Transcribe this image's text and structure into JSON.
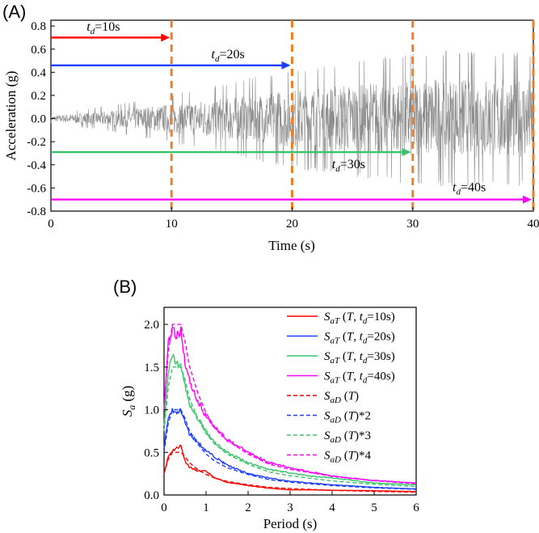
{
  "panel_a": {
    "label": "(A)",
    "xlabel": "Time (s)",
    "ylabel": "Acceleration (g)",
    "xticks": [
      "0",
      "10",
      "20",
      "30",
      "40"
    ],
    "yticks": [
      "-0.8",
      "-0.6",
      "-0.4",
      "-0.2",
      "0.0",
      "0.2",
      "0.4",
      "0.6",
      "0.8"
    ],
    "record_color": "#8c8c8c",
    "cutoff_color": "#f07f2a",
    "annotations": [
      {
        "sub": "d",
        "text": "=10s",
        "color": "#ff0000",
        "value": 10,
        "arrow_y": 0.7,
        "label_y": 0.76
      },
      {
        "sub": "d",
        "text": "=20s",
        "color": "#1f3fff",
        "value": 20,
        "arrow_y": 0.46,
        "label_y": 0.52
      },
      {
        "sub": "d",
        "text": "=30s",
        "color": "#3cc36a",
        "value": 30,
        "arrow_y": -0.29,
        "label_y": -0.43
      },
      {
        "sub": "d",
        "text": "=40s",
        "color": "#ff00ff",
        "value": 40,
        "arrow_y": -0.7,
        "label_y": -0.63
      }
    ]
  },
  "panel_b": {
    "label": "(B)",
    "xlabel": "Period (s)",
    "ylabel_main": "S",
    "ylabel_sub": "a",
    "ylabel_unit": " (g)",
    "xticks": [
      "0",
      "1",
      "2",
      "3",
      "4",
      "5",
      "6"
    ],
    "yticks": [
      "0.0",
      "0.5",
      "1.0",
      "1.5",
      "2.0"
    ],
    "legend": [
      {
        "sub": "aT",
        "pre": " (",
        "t": "T",
        "mid": ", t",
        "dsub": "d",
        "post": "=10s)",
        "color": "#ff0000",
        "dash": false
      },
      {
        "sub": "aT",
        "pre": " (",
        "t": "T",
        "mid": ", t",
        "dsub": "d",
        "post": "=20s)",
        "color": "#1f3fff",
        "dash": false
      },
      {
        "sub": "aT",
        "pre": " (",
        "t": "T",
        "mid": ", t",
        "dsub": "d",
        "post": "=30s)",
        "color": "#3cc36a",
        "dash": false
      },
      {
        "sub": "aT",
        "pre": " (",
        "t": "T",
        "mid": ", t",
        "dsub": "d",
        "post": "=40s)",
        "color": "#ff00ff",
        "dash": false
      },
      {
        "sub": "aD",
        "pre": " (",
        "t": "T",
        "mid": "",
        "dsub": "",
        "post": ")",
        "color": "#ff0000",
        "dash": true
      },
      {
        "sub": "aD",
        "pre": " (",
        "t": "T",
        "mid": "",
        "dsub": "",
        "post": ")*2",
        "color": "#1f3fff",
        "dash": true
      },
      {
        "sub": "aD",
        "pre": " (",
        "t": "T",
        "mid": "",
        "dsub": "",
        "post": ")*3",
        "color": "#3cc36a",
        "dash": true
      },
      {
        "sub": "aD",
        "pre": " (",
        "t": "T",
        "mid": "",
        "dsub": "",
        "post": ")*4",
        "color": "#ff00ff",
        "dash": true
      }
    ]
  },
  "chart_data": [
    {
      "type": "line",
      "series_style": "acceleration time history (approximate envelope)",
      "xlim": [
        0,
        40
      ],
      "ylim": [
        -0.8,
        0.85
      ],
      "envelope": {
        "t": [
          0,
          5,
          10,
          15,
          20,
          25,
          30,
          35,
          40
        ],
        "amplitude": [
          0.04,
          0.12,
          0.22,
          0.33,
          0.45,
          0.52,
          0.6,
          0.62,
          0.6
        ]
      },
      "cutoffs": [
        10,
        20,
        30,
        40
      ]
    },
    {
      "type": "line",
      "xlim": [
        0,
        6
      ],
      "ylim": [
        0,
        2.2
      ],
      "x": [
        0,
        0.1,
        0.2,
        0.3,
        0.4,
        0.5,
        0.6,
        0.8,
        1.0,
        1.2,
        1.5,
        2.0,
        2.5,
        3.0,
        3.5,
        4.0,
        5.0,
        6.0
      ],
      "design_base": [
        0.25,
        0.42,
        0.5,
        0.5,
        0.5,
        0.45,
        0.38,
        0.3,
        0.24,
        0.2,
        0.16,
        0.12,
        0.09,
        0.075,
        0.065,
        0.055,
        0.042,
        0.033
      ],
      "series": [
        {
          "id": "td10",
          "values": [
            0.25,
            0.45,
            0.52,
            0.55,
            0.58,
            0.4,
            0.33,
            0.28,
            0.28,
            0.2,
            0.15,
            0.11,
            0.08,
            0.06,
            0.06,
            0.055,
            0.05,
            0.04
          ]
        },
        {
          "id": "td20",
          "values": [
            0.55,
            0.9,
            1.0,
            0.95,
            1.0,
            0.85,
            0.72,
            0.62,
            0.52,
            0.45,
            0.35,
            0.25,
            0.2,
            0.16,
            0.14,
            0.12,
            0.09,
            0.07
          ]
        },
        {
          "id": "td30",
          "values": [
            0.8,
            1.45,
            1.62,
            1.55,
            1.5,
            1.3,
            1.05,
            0.9,
            0.75,
            0.62,
            0.5,
            0.38,
            0.3,
            0.26,
            0.22,
            0.2,
            0.14,
            0.12
          ]
        },
        {
          "id": "td40",
          "values": [
            1.0,
            1.8,
            1.95,
            1.85,
            1.95,
            1.55,
            1.35,
            1.1,
            0.92,
            0.8,
            0.65,
            0.5,
            0.38,
            0.32,
            0.27,
            0.22,
            0.17,
            0.14
          ]
        }
      ],
      "design_multipliers": [
        1,
        2,
        3,
        4
      ]
    }
  ]
}
